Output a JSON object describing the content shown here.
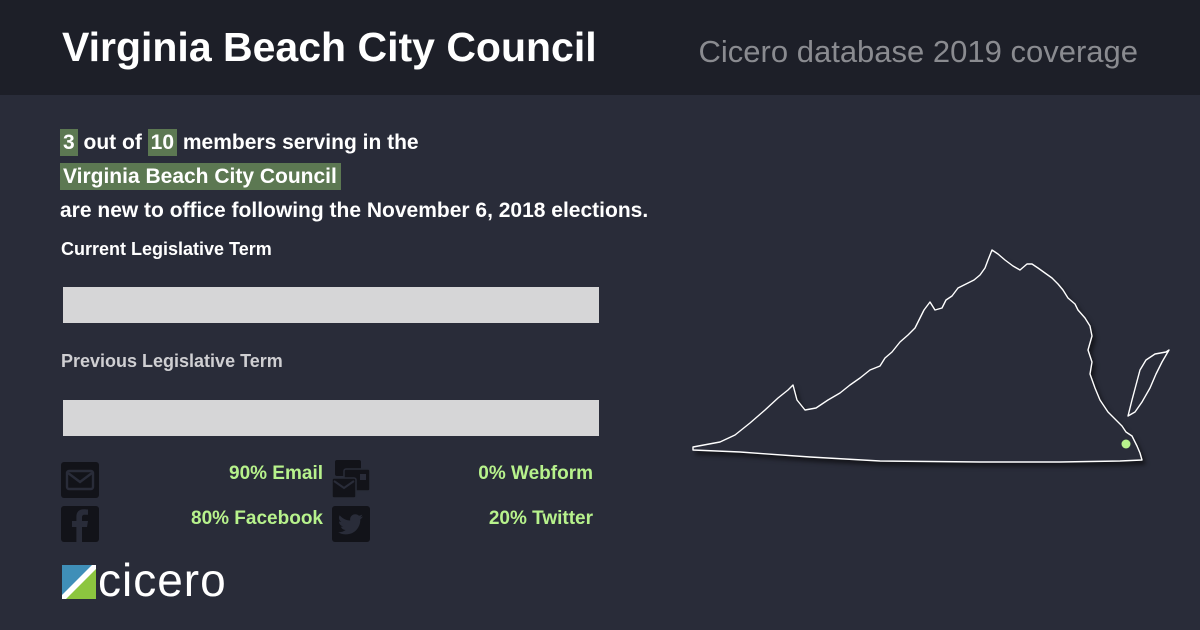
{
  "header": {
    "title": "Virginia Beach City Council",
    "subtitle": "Cicero database 2019 coverage"
  },
  "headline": {
    "new_count": "3",
    "out_of": " out of ",
    "total_count": "10",
    "serving_text": " members serving in the",
    "body_name": "Virginia Beach City Council",
    "tail_text": "are new to office following the November 6, 2018 elections."
  },
  "terms": {
    "current_label": "Current Legislative Term",
    "previous_label": "Previous Legislative Term"
  },
  "contact_stats": {
    "email": "90% Email",
    "webform": "0% Webform",
    "facebook": "80% Facebook",
    "twitter": "20% Twitter"
  },
  "logo": {
    "wordmark": "cicero"
  },
  "colors": {
    "background": "#292c39",
    "header_background": "#1d1f28",
    "highlight": "#5c7852",
    "stat_text": "#b7f28c",
    "location_marker": "#b7f28c"
  }
}
